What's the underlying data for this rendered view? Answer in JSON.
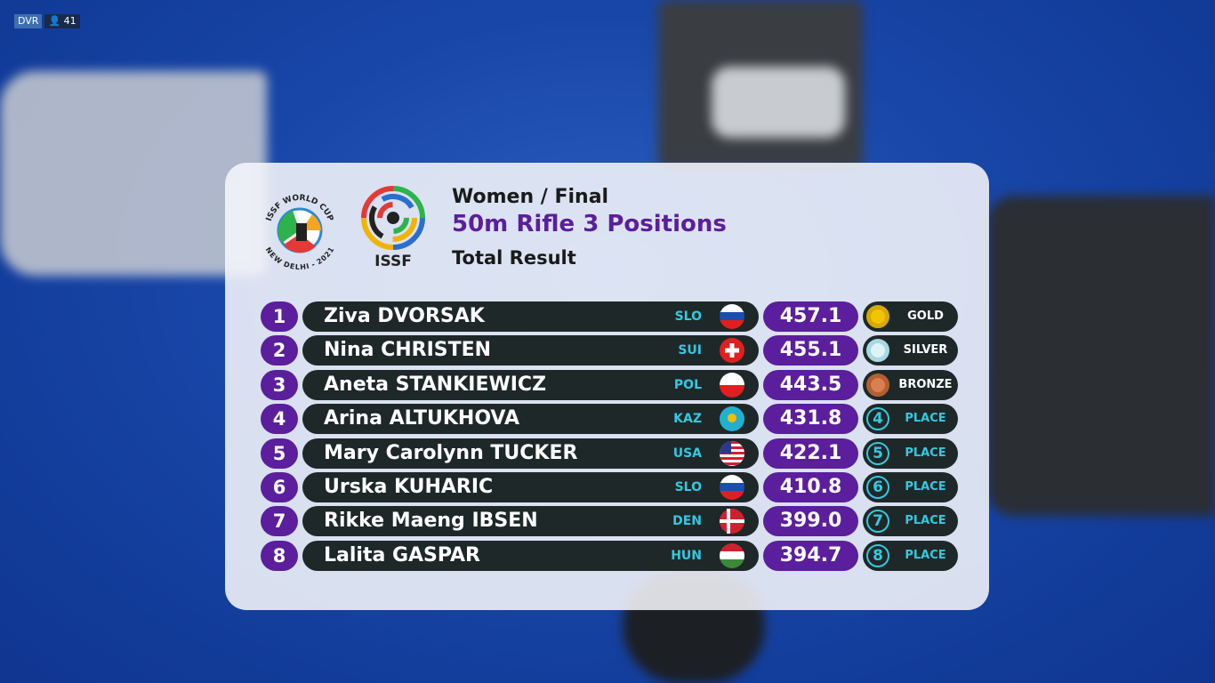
{
  "overlay": {
    "dvr": "DVR",
    "viewers": "41"
  },
  "logos": {
    "world_cup_top": "ISSF WORLD CUP",
    "world_cup_bottom": "NEW DELHI - 2021",
    "issf": "ISSF"
  },
  "header": {
    "event": "Women / Final",
    "discipline": "50m Rifle 3 Positions",
    "subtitle": "Total Result"
  },
  "table": {
    "rows": [
      {
        "rank": "1",
        "name": "Ziva DVORSAK",
        "noc": "SLO",
        "score": "457.1",
        "medal": "GOLD"
      },
      {
        "rank": "2",
        "name": "Nina CHRISTEN",
        "noc": "SUI",
        "score": "455.1",
        "medal": "SILVER"
      },
      {
        "rank": "3",
        "name": "Aneta STANKIEWICZ",
        "noc": "POL",
        "score": "443.5",
        "medal": "BRONZE"
      },
      {
        "rank": "4",
        "name": "Arina ALTUKHOVA",
        "noc": "KAZ",
        "score": "431.8",
        "medal": "PLACE"
      },
      {
        "rank": "5",
        "name": "Mary Carolynn TUCKER",
        "noc": "USA",
        "score": "422.1",
        "medal": "PLACE"
      },
      {
        "rank": "6",
        "name": "Urska KUHARIC",
        "noc": "SLO",
        "score": "410.8",
        "medal": "PLACE"
      },
      {
        "rank": "7",
        "name": "Rikke Maeng IBSEN",
        "noc": "DEN",
        "score": "399.0",
        "medal": "PLACE"
      },
      {
        "rank": "8",
        "name": "Lalita GASPAR",
        "noc": "HUN",
        "score": "394.7",
        "medal": "PLACE"
      }
    ]
  }
}
